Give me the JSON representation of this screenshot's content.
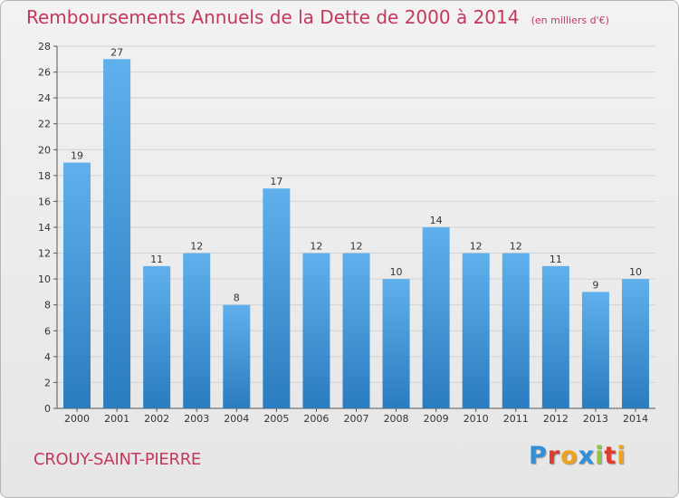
{
  "header": {
    "title": "Remboursements Annuels de la Dette de 2000 à 2014",
    "unit": "(en milliers d'€)"
  },
  "footer": {
    "commune": "CROUY-SAINT-PIERRE",
    "brand": [
      {
        "ch": "P",
        "color": "#2f8fd8"
      },
      {
        "ch": "r",
        "color": "#e03b2e"
      },
      {
        "ch": "o",
        "color": "#f0a21a"
      },
      {
        "ch": "x",
        "color": "#2f8fd8"
      },
      {
        "ch": "i",
        "color": "#8dc63f"
      },
      {
        "ch": "t",
        "color": "#e03b2e"
      },
      {
        "ch": "i",
        "color": "#f0a21a"
      }
    ]
  },
  "colors": {
    "bar_top": "#5fb0ec",
    "bar_bottom": "#2a7cc0",
    "title": "#c4385c",
    "grid": "#d2d2d2"
  },
  "chart_data": {
    "type": "bar",
    "title": "Remboursements Annuels de la Dette de 2000 à 2014",
    "categories": [
      "2000",
      "2001",
      "2002",
      "2003",
      "2004",
      "2005",
      "2006",
      "2007",
      "2008",
      "2009",
      "2010",
      "2011",
      "2012",
      "2013",
      "2014"
    ],
    "values": [
      19,
      27,
      11,
      12,
      8,
      17,
      12,
      12,
      10,
      14,
      12,
      12,
      11,
      9,
      10
    ],
    "ylim": [
      0,
      28
    ],
    "yticks": [
      0,
      2,
      4,
      6,
      8,
      10,
      12,
      14,
      16,
      18,
      20,
      22,
      24,
      26,
      28
    ],
    "grid": true,
    "legend": "none"
  }
}
